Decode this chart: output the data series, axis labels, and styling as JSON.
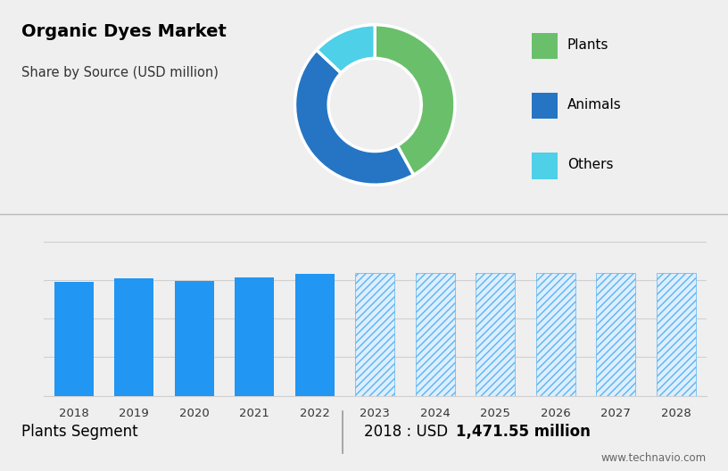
{
  "title": "Organic Dyes Market",
  "subtitle": "Share by Source (USD million)",
  "bg_top": "#c5d3e0",
  "bg_bottom": "#efefef",
  "donut_colors": [
    "#6abf6a",
    "#2575c4",
    "#4dd0e8"
  ],
  "donut_labels": [
    "Plants",
    "Animals",
    "Others"
  ],
  "donut_sizes": [
    42,
    45,
    13
  ],
  "bar_years_solid": [
    2018,
    2019,
    2020,
    2021,
    2022
  ],
  "bar_values_solid": [
    1471.55,
    1520,
    1485,
    1530,
    1575
  ],
  "bar_years_hatched": [
    2023,
    2024,
    2025,
    2026,
    2027,
    2028
  ],
  "bar_values_hatched": [
    1590,
    1590,
    1590,
    1590,
    1590,
    1590
  ],
  "bar_color_solid": "#2196f3",
  "bar_color_hatched": "#ddeeff",
  "bar_hatch_color": "#5ab4f0",
  "footer_left": "Plants Segment",
  "footer_right_prefix": "2018 : USD ",
  "footer_right_bold": "1,471.55 million",
  "footer_url": "www.technavio.com",
  "grid_color": "#d0d0d0",
  "ylim_bar": [
    0,
    2200
  ]
}
